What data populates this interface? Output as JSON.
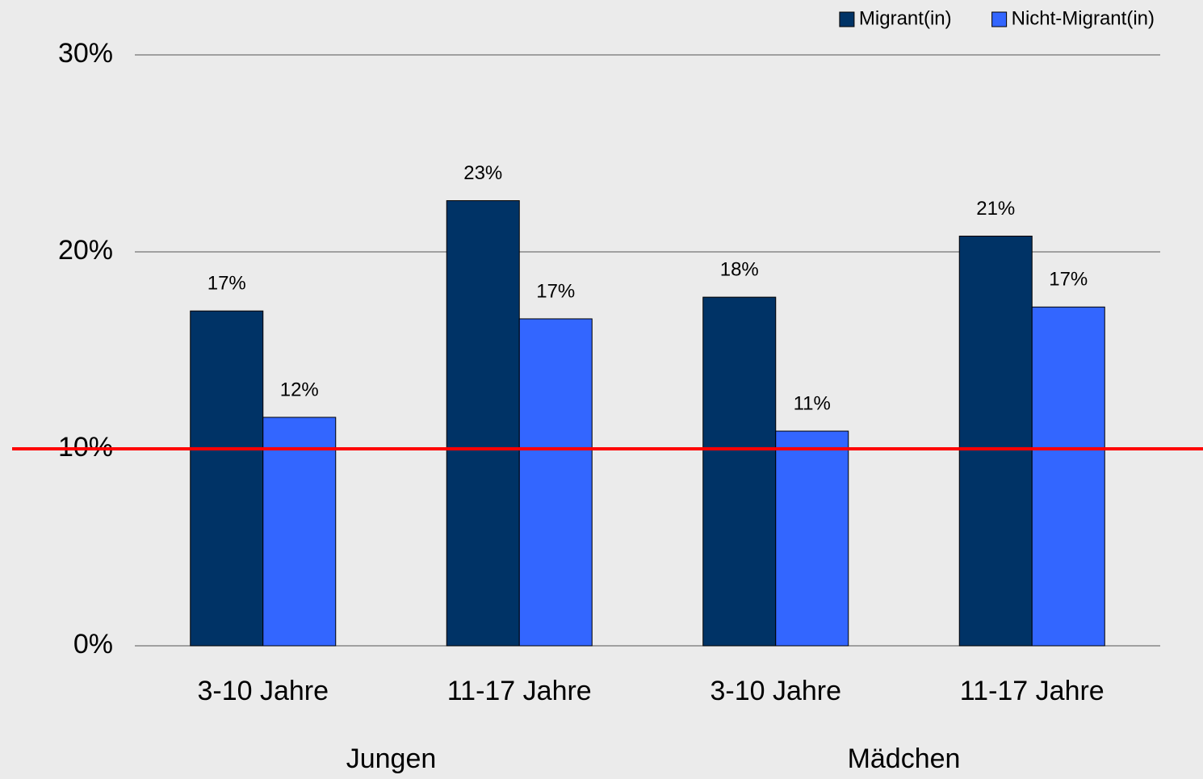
{
  "chart_data": {
    "type": "bar",
    "categories": [
      "3-10 Jahre",
      "11-17 Jahre",
      "3-10 Jahre",
      "11-17 Jahre"
    ],
    "groups": [
      "Jungen",
      "Mädchen"
    ],
    "series": [
      {
        "name": "Migrant(in)",
        "color": "#003366",
        "values": [
          17.0,
          22.6,
          17.7,
          20.8
        ],
        "value_labels": [
          "17%",
          "23%",
          "18%",
          "21%"
        ]
      },
      {
        "name": "Nicht-Migrant(in)",
        "color": "#3366ff",
        "values": [
          11.6,
          16.6,
          10.9,
          17.2
        ],
        "value_labels": [
          "12%",
          "17%",
          "11%",
          "17%"
        ]
      }
    ],
    "ylim": [
      0,
      30
    ],
    "yticks": [
      {
        "value": 0,
        "label": "0%"
      },
      {
        "value": 10,
        "label": "10%"
      },
      {
        "value": 20,
        "label": "20%"
      },
      {
        "value": 30,
        "label": "30%"
      }
    ],
    "grid": true,
    "reference_line": {
      "value": 10,
      "color": "#ff0000"
    },
    "legend": "top-right"
  }
}
